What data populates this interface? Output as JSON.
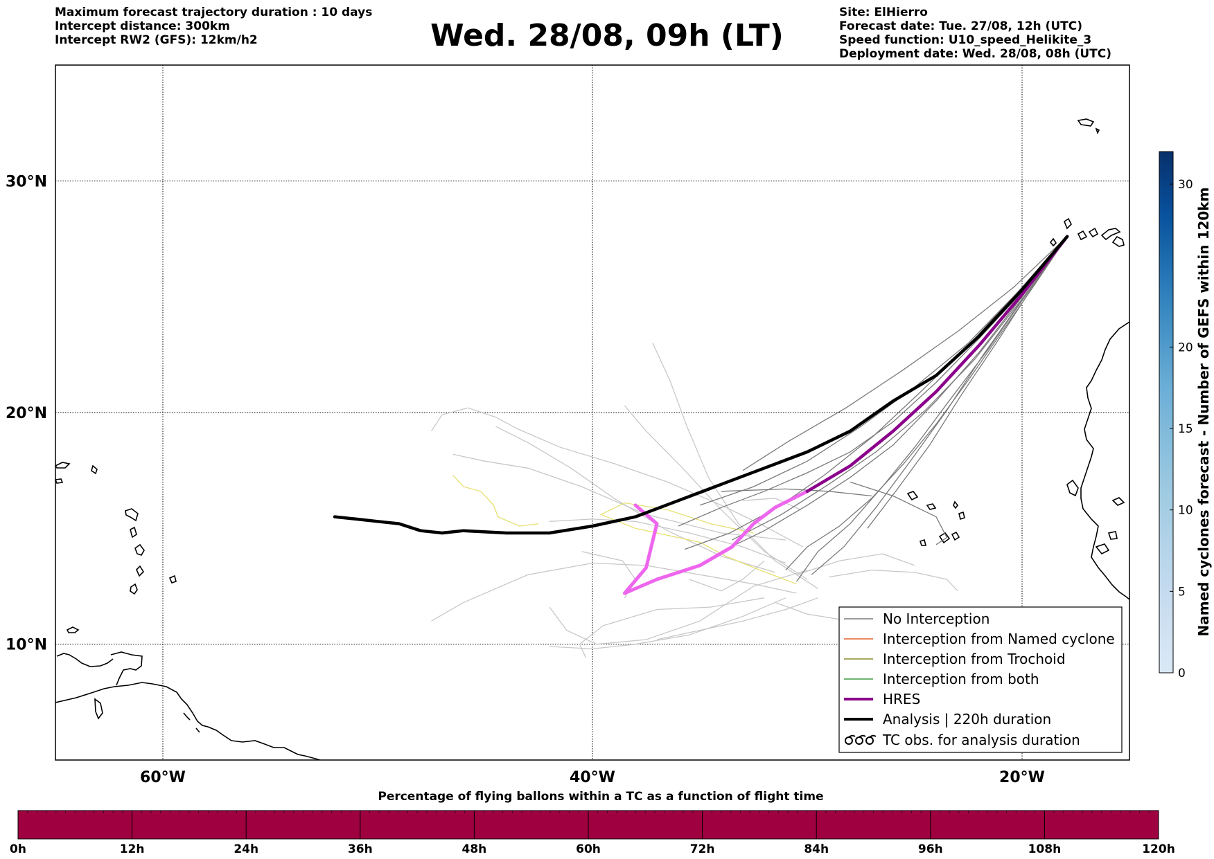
{
  "header": {
    "left_lines": [
      "Maximum forecast trajectory duration : 10 days",
      "Intercept distance: 300km",
      "Intercept RW2 (GFS):  12km/h2"
    ],
    "title": "Wed. 28/08, 09h (LT)",
    "right_lines": [
      "Site: ElHierro",
      "Forecast date: Tue. 27/08, 12h (UTC)",
      "Speed function: U10_speed_Helikite_3",
      "Deployment date: Wed. 28/08, 08h (UTC)"
    ]
  },
  "map": {
    "lon_range": [
      -65,
      15
    ],
    "lat_range": [
      5,
      35
    ],
    "lat_labels": [
      "30°N",
      "20°N",
      "10°N"
    ],
    "lat_values": [
      30,
      20,
      10
    ],
    "lon_labels": [
      "60°W",
      "40°W",
      "20°W"
    ],
    "lon_values": [
      -60,
      -40,
      -20
    ],
    "gridlines": true,
    "site_marker": [
      -17.9,
      27.6
    ]
  },
  "legend": {
    "position": "lower-right",
    "items": [
      {
        "label": "No Interception",
        "color": "#7a7a7a",
        "style": "thin"
      },
      {
        "label": "Interception from Named cyclone",
        "color": "#e2622a",
        "style": "thin"
      },
      {
        "label": "Interception from Trochoid",
        "color": "#8c8c2c",
        "style": "thin"
      },
      {
        "label": "Interception from both",
        "color": "#3d9a3d",
        "style": "thin"
      },
      {
        "label": "HRES",
        "color": "#8b008b",
        "style": "thick"
      },
      {
        "label": "Analysis | 220h duration",
        "color": "#000000",
        "style": "thick"
      },
      {
        "label": "TC obs. for analysis duration",
        "color": "#000000",
        "style": "cyclone-icon"
      }
    ]
  },
  "colorbar_right": {
    "title": "Named cyclones forecast - Number of GEFS within 120km",
    "ticks": [
      "0",
      "5",
      "10",
      "15",
      "20",
      "30"
    ],
    "tick_values": [
      0,
      5,
      10,
      15,
      20,
      30
    ],
    "range": [
      0,
      32
    ],
    "colors": [
      "#dbe9f6",
      "#b8d5ea",
      "#8cc0de",
      "#5ba2d0",
      "#3283be",
      "#12539b",
      "#0a326e"
    ]
  },
  "colorbar_bottom": {
    "title": "Percentage of flying ballons within a TC as a function of flight time",
    "ticks": [
      "0h",
      "12h",
      "24h",
      "36h",
      "48h",
      "60h",
      "72h",
      "84h",
      "96h",
      "108h",
      "120h"
    ],
    "fill_color": "#9e0040"
  },
  "chart_data": {
    "type": "trajectory-map",
    "analysis": [
      [
        -17.9,
        27.6
      ],
      [
        -20,
        25.3
      ],
      [
        -22,
        23.3
      ],
      [
        -24,
        21.6
      ],
      [
        -26,
        20.5
      ],
      [
        -28,
        19.2
      ],
      [
        -30,
        18.3
      ],
      [
        -32,
        17.6
      ],
      [
        -34,
        16.9
      ],
      [
        -36,
        16.2
      ],
      [
        -38,
        15.5
      ],
      [
        -40,
        15.1
      ],
      [
        -42,
        14.8
      ],
      [
        -44,
        14.8
      ],
      [
        -46,
        14.9
      ],
      [
        -47,
        14.8
      ],
      [
        -48,
        14.9
      ],
      [
        -49,
        15.2
      ],
      [
        -50,
        15.3
      ],
      [
        -51,
        15.4
      ],
      [
        -52,
        15.5
      ]
    ],
    "hres": [
      [
        -17.9,
        27.6
      ],
      [
        -20,
        25.1
      ],
      [
        -22,
        22.9
      ],
      [
        -24,
        20.9
      ],
      [
        -26,
        19.2
      ],
      [
        -28,
        17.7
      ],
      [
        -30,
        16.6
      ],
      [
        -31.5,
        15.9
      ],
      [
        -32.5,
        15.2
      ],
      [
        -33.5,
        14.2
      ],
      [
        -35,
        13.4
      ],
      [
        -37,
        12.8
      ],
      [
        -38.5,
        12.2
      ],
      [
        -37.5,
        13.3
      ],
      [
        -37,
        15.2
      ],
      [
        -38,
        16
      ]
    ],
    "no_interception_near": [
      [
        [
          -17.9,
          27.6
        ],
        [
          -20,
          25.2
        ],
        [
          -22,
          23.2
        ],
        [
          -24,
          21.3
        ],
        [
          -26,
          19.6
        ],
        [
          -28,
          18.3
        ],
        [
          -30,
          17.4
        ],
        [
          -32,
          16.6
        ],
        [
          -34,
          15.9
        ],
        [
          -36,
          15.1
        ]
      ],
      [
        [
          -17.9,
          27.6
        ],
        [
          -19.5,
          25.4
        ],
        [
          -21,
          23.4
        ],
        [
          -22.5,
          21.4
        ],
        [
          -24,
          19.5
        ],
        [
          -25.5,
          17.8
        ],
        [
          -27,
          16.3
        ],
        [
          -28.5,
          15.1
        ],
        [
          -30,
          14.2
        ],
        [
          -31,
          13.2
        ]
      ],
      [
        [
          -17.9,
          27.6
        ],
        [
          -20,
          25.0
        ],
        [
          -22,
          22.6
        ],
        [
          -24,
          20.5
        ],
        [
          -26,
          18.6
        ],
        [
          -28,
          17.2
        ],
        [
          -30,
          16.0
        ],
        [
          -32,
          14.9
        ],
        [
          -34,
          14.0
        ]
      ],
      [
        [
          -17.9,
          27.6
        ],
        [
          -19.8,
          25.1
        ],
        [
          -21.6,
          22.7
        ],
        [
          -23.4,
          20.5
        ],
        [
          -25,
          18.5
        ],
        [
          -26.5,
          16.8
        ],
        [
          -28,
          15.2
        ],
        [
          -29.5,
          14.0
        ],
        [
          -30.5,
          12.7
        ]
      ],
      [
        [
          -17.9,
          27.6
        ],
        [
          -20.2,
          25.2
        ],
        [
          -22.5,
          23.0
        ],
        [
          -25,
          21.1
        ],
        [
          -27.5,
          19.4
        ],
        [
          -30,
          17.9
        ],
        [
          -32.5,
          16.8
        ],
        [
          -35,
          16.0
        ]
      ],
      [
        [
          -17.9,
          27.6
        ],
        [
          -19.6,
          25.3
        ],
        [
          -21.2,
          23.0
        ],
        [
          -22.8,
          20.8
        ],
        [
          -24.3,
          18.6
        ],
        [
          -25.8,
          16.7
        ],
        [
          -27.2,
          15.0
        ]
      ],
      [
        [
          -17.9,
          27.6
        ],
        [
          -20,
          24.9
        ],
        [
          -22.2,
          22.3
        ],
        [
          -24.5,
          20.1
        ],
        [
          -26.8,
          18.3
        ],
        [
          -29,
          16.9
        ],
        [
          -31.2,
          15.6
        ],
        [
          -33.5,
          14.5
        ]
      ],
      [
        [
          -17.9,
          27.6
        ],
        [
          -20.4,
          25.4
        ],
        [
          -23,
          23.5
        ],
        [
          -25.6,
          21.8
        ],
        [
          -28.2,
          20.2
        ],
        [
          -30.8,
          18.8
        ],
        [
          -33,
          17.5
        ]
      ],
      [
        [
          -17.9,
          27.6
        ],
        [
          -19.9,
          25.0
        ],
        [
          -21.8,
          22.5
        ],
        [
          -23.5,
          20.1
        ],
        [
          -25.2,
          17.9
        ],
        [
          -26.8,
          15.9
        ],
        [
          -28.3,
          14.2
        ],
        [
          -29.8,
          13.0
        ]
      ],
      [
        [
          -17.9,
          27.6
        ],
        [
          -20.1,
          25.3
        ],
        [
          -22.3,
          23.1
        ],
        [
          -24.6,
          21.0
        ],
        [
          -26.9,
          19.0
        ],
        [
          -29.2,
          17.3
        ],
        [
          -31.4,
          15.9
        ],
        [
          -33.6,
          14.8
        ],
        [
          -35.7,
          14.1
        ]
      ],
      [
        [
          -28,
          17.0
        ],
        [
          -26,
          16.4
        ],
        [
          -24,
          15.5
        ],
        [
          -23.5,
          14.6
        ],
        [
          -24,
          14.3
        ]
      ],
      [
        [
          -34,
          16.6
        ],
        [
          -31,
          16.7
        ],
        [
          -29,
          16.6
        ],
        [
          -27,
          16.4
        ]
      ]
    ],
    "no_interception_far": [
      [
        [
          -31,
          13.5
        ],
        [
          -33,
          14.2
        ],
        [
          -35.5,
          14.8
        ],
        [
          -38,
          15.3
        ],
        [
          -40,
          15.4
        ],
        [
          -42,
          15.3
        ]
      ],
      [
        [
          -30.5,
          12.2
        ],
        [
          -32.5,
          12.6
        ],
        [
          -35,
          13.0
        ],
        [
          -37.5,
          13.4
        ],
        [
          -40,
          13.5
        ],
        [
          -43,
          13.0
        ],
        [
          -46,
          11.8
        ],
        [
          -47.5,
          11.0
        ]
      ],
      [
        [
          -31.5,
          13.1
        ],
        [
          -34,
          13.8
        ],
        [
          -36.5,
          14.9
        ],
        [
          -39,
          16.3
        ],
        [
          -41,
          17.6
        ],
        [
          -43,
          18.7
        ],
        [
          -44.5,
          19.4
        ]
      ],
      [
        [
          -32,
          12.0
        ],
        [
          -34.5,
          11.6
        ],
        [
          -37,
          11.5
        ],
        [
          -39.5,
          10.8
        ],
        [
          -40.6,
          10.0
        ],
        [
          -40.3,
          9.4
        ]
      ],
      [
        [
          -30,
          12.8
        ],
        [
          -32,
          14.0
        ],
        [
          -34,
          15.8
        ],
        [
          -35.8,
          17.6
        ],
        [
          -37.5,
          19.2
        ],
        [
          -38.5,
          20.3
        ]
      ],
      [
        [
          -29.5,
          12.4
        ],
        [
          -31.5,
          13.6
        ],
        [
          -33.2,
          15.2
        ],
        [
          -34.6,
          17.2
        ],
        [
          -35.6,
          19.4
        ],
        [
          -36.4,
          21.4
        ],
        [
          -37.2,
          23.0
        ]
      ],
      [
        [
          -30,
          13.2
        ],
        [
          -32.5,
          12.5
        ],
        [
          -35,
          11.0
        ],
        [
          -37.5,
          10.2
        ],
        [
          -39.8,
          10.0
        ],
        [
          -41.2,
          10.6
        ],
        [
          -42,
          11.6
        ]
      ],
      [
        [
          -31,
          12.0
        ],
        [
          -33,
          11.2
        ],
        [
          -35.5,
          10.4
        ],
        [
          -38,
          10.0
        ],
        [
          -40,
          9.8
        ],
        [
          -42,
          9.9
        ]
      ],
      [
        [
          -29.5,
          12.0
        ],
        [
          -31,
          11.5
        ],
        [
          -33,
          11.0
        ],
        [
          -35,
          10.6
        ],
        [
          -37,
          10.2
        ]
      ],
      [
        [
          -30.2,
          14.2
        ],
        [
          -32,
          15.1
        ],
        [
          -34,
          16.0
        ],
        [
          -36.5,
          17.0
        ],
        [
          -39,
          17.8
        ],
        [
          -41.5,
          18.5
        ],
        [
          -43.5,
          19.3
        ],
        [
          -44.5,
          19.8
        ],
        [
          -45.8,
          20.2
        ],
        [
          -47,
          19.9
        ],
        [
          -47.5,
          19.2
        ]
      ],
      [
        [
          -31,
          14.5
        ],
        [
          -34,
          14.8
        ],
        [
          -37.5,
          15.6
        ],
        [
          -40.5,
          16.8
        ],
        [
          -43,
          17.6
        ],
        [
          -45,
          17.9
        ],
        [
          -46.5,
          18.2
        ]
      ],
      [
        [
          -29,
          12.9
        ],
        [
          -27,
          13.2
        ],
        [
          -25,
          13.1
        ],
        [
          -23.5,
          12.8
        ],
        [
          -23,
          12.3
        ]
      ],
      [
        [
          -31.5,
          11.8
        ],
        [
          -30,
          11.3
        ],
        [
          -28,
          11.0
        ],
        [
          -27,
          11.3
        ]
      ],
      [
        [
          -32,
          13.6
        ],
        [
          -33,
          12.8
        ],
        [
          -34,
          12.3
        ],
        [
          -35.5,
          12.8
        ]
      ],
      [
        [
          -30.5,
          13.0
        ],
        [
          -28.5,
          13.6
        ],
        [
          -26.5,
          13.9
        ],
        [
          -25,
          13.4
        ]
      ],
      [
        [
          -38.5,
          12.0
        ],
        [
          -38,
          12.8
        ],
        [
          -38.6,
          13.6
        ],
        [
          -40.5,
          14.0
        ]
      ],
      [
        [
          -33,
          16.2
        ],
        [
          -31.5,
          16.3
        ],
        [
          -30.3,
          15.8
        ]
      ]
    ],
    "trochoid_like": [
      [
        [
          -32.5,
          14.8
        ],
        [
          -34.5,
          15.2
        ],
        [
          -36.5,
          15.8
        ],
        [
          -38.5,
          16.1
        ],
        [
          -39.6,
          15.6
        ],
        [
          -38,
          15.0
        ],
        [
          -36.5,
          14.7
        ],
        [
          -35,
          14.4
        ],
        [
          -33.8,
          13.8
        ],
        [
          -32.2,
          13.2
        ],
        [
          -30.5,
          12.6
        ]
      ],
      [
        [
          -46.5,
          17.3
        ],
        [
          -46,
          16.8
        ],
        [
          -45.2,
          16.6
        ],
        [
          -44.6,
          16.0
        ],
        [
          -44.4,
          15.5
        ],
        [
          -43.4,
          15.1
        ],
        [
          -42.5,
          15.2
        ]
      ]
    ]
  }
}
